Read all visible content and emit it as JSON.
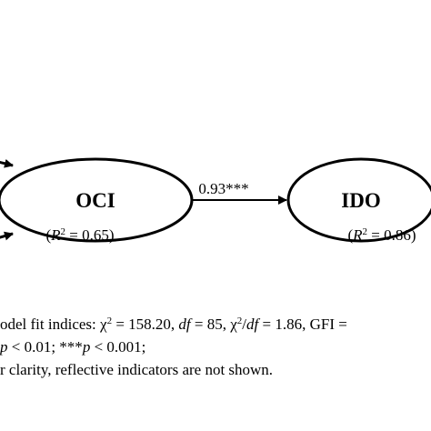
{
  "nodes": [
    {
      "label": "OCI",
      "r2": [
        {
          "text": "(",
          "style": "normal"
        },
        {
          "text": "R",
          "style": "italic"
        },
        {
          "text": "2",
          "style": "sup"
        },
        {
          "text": " = 0.65)",
          "style": "normal"
        }
      ]
    },
    {
      "label": "IDO",
      "r2": [
        {
          "text": "(",
          "style": "normal"
        },
        {
          "text": "R",
          "style": "italic"
        },
        {
          "text": "2",
          "style": "sup"
        },
        {
          "text": " = 0.86)",
          "style": "normal"
        }
      ]
    }
  ],
  "edges": [
    {
      "from": 0,
      "to": 1,
      "label": "0.93***"
    }
  ],
  "notes": [
    [
      {
        "text": "odel fit indices: χ",
        "style": "normal"
      },
      {
        "text": "2",
        "style": "sup"
      },
      {
        "text": " = 158.20, ",
        "style": "normal"
      },
      {
        "text": "df",
        "style": "italic"
      },
      {
        "text": " = 85, χ",
        "style": "normal"
      },
      {
        "text": "2",
        "style": "sup"
      },
      {
        "text": "/",
        "style": "normal"
      },
      {
        "text": "df",
        "style": "italic"
      },
      {
        "text": " = 1.86, GFI =",
        "style": "normal"
      }
    ],
    [
      {
        "text": "p",
        "style": "italic"
      },
      {
        "text": " < 0.01; ***",
        "style": "normal"
      },
      {
        "text": "p",
        "style": "italic"
      },
      {
        "text": " < 0.001;",
        "style": "normal"
      }
    ],
    [
      {
        "text": "r clarity, reflective indicators are not shown.",
        "style": "normal"
      }
    ]
  ]
}
